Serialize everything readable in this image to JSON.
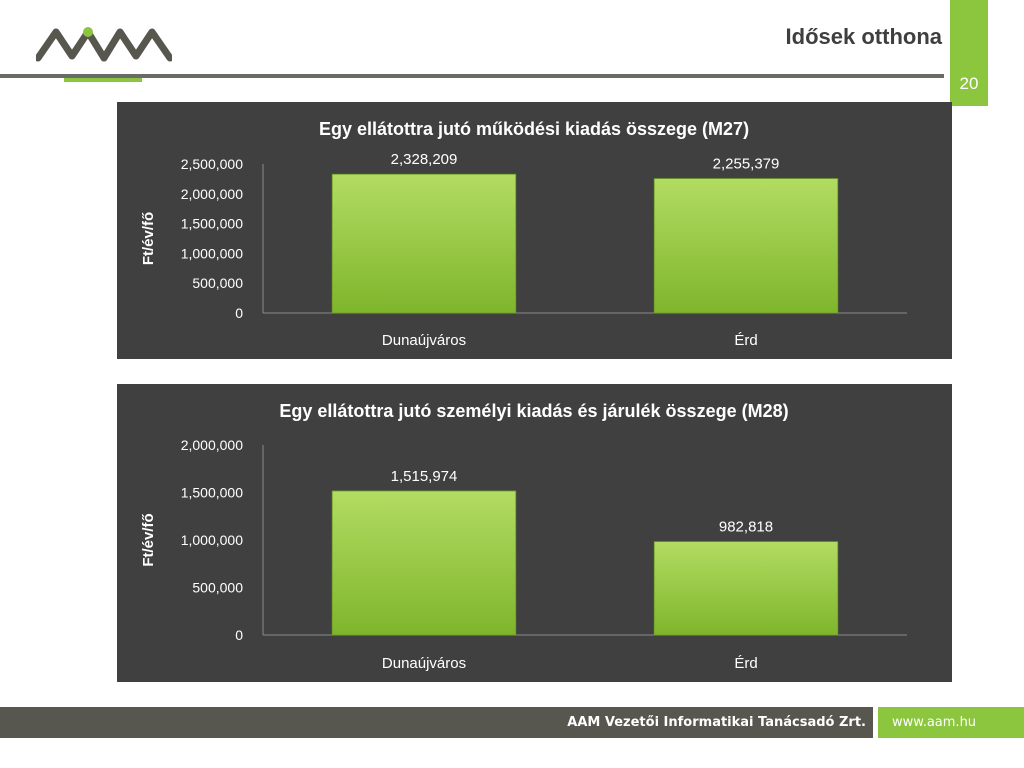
{
  "header": {
    "title": "Idősek otthona",
    "page_number": "20"
  },
  "brand": {
    "green": "#8cc63f",
    "dark": "#575750",
    "logo_icon": "aam-logo-icon"
  },
  "footer": {
    "company": "AAM Vezetői Informatikai Tanácsadó Zrt.",
    "website": "www.aam.hu"
  },
  "chart_data": [
    {
      "type": "bar",
      "title": "Egy ellátottra jutó működési kiadás összege (M27)",
      "ylabel": "Ft/év/fő",
      "xlabel": "",
      "categories": [
        "Dunaújváros",
        "Érd"
      ],
      "values": [
        2328209,
        2255379
      ],
      "value_labels": [
        "2,328,209",
        "2,255,379"
      ],
      "ylim": [
        0,
        2500000
      ],
      "yticks": [
        0,
        500000,
        1000000,
        1500000,
        2000000,
        2500000
      ],
      "ytick_labels": [
        "0",
        "500,000",
        "1,000,000",
        "1,500,000",
        "2,000,000",
        "2,500,000"
      ],
      "grid": false,
      "legend": "none",
      "bar_color": "#8cc63f"
    },
    {
      "type": "bar",
      "title": "Egy ellátottra jutó személyi kiadás és járulék összege (M28)",
      "ylabel": "Ft/év/fő",
      "xlabel": "",
      "categories": [
        "Dunaújváros",
        "Érd"
      ],
      "values": [
        1515974,
        982818
      ],
      "value_labels": [
        "1,515,974",
        "982,818"
      ],
      "ylim": [
        0,
        2000000
      ],
      "yticks": [
        0,
        500000,
        1000000,
        1500000,
        2000000
      ],
      "ytick_labels": [
        "0",
        "500,000",
        "1,000,000",
        "1,500,000",
        "2,000,000"
      ],
      "grid": false,
      "legend": "none",
      "bar_color": "#8cc63f"
    }
  ]
}
